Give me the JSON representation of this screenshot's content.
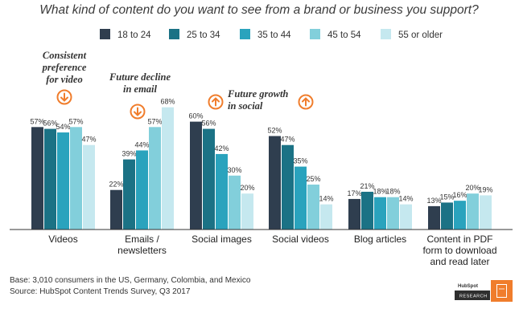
{
  "chart_data": {
    "type": "bar",
    "title": "What kind of content do you want to see from a brand or business you support?",
    "categories": [
      [
        "Videos"
      ],
      [
        "Emails /",
        "newsletters"
      ],
      [
        "Social images"
      ],
      [
        "Social videos"
      ],
      [
        "Blog articles"
      ],
      [
        "Content in PDF",
        "form to download",
        "and read later"
      ]
    ],
    "series": [
      {
        "name": "18 to 24",
        "color": "#2f3e4f",
        "values": [
          57,
          22,
          60,
          52,
          17,
          13
        ]
      },
      {
        "name": "25 to 34",
        "color": "#1b7285",
        "values": [
          56,
          39,
          56,
          47,
          21,
          15
        ]
      },
      {
        "name": "35 to 44",
        "color": "#2aa3bd",
        "values": [
          54,
          44,
          42,
          35,
          18,
          16
        ]
      },
      {
        "name": "45 to 54",
        "color": "#82cfdb",
        "values": [
          57,
          57,
          30,
          25,
          18,
          20
        ]
      },
      {
        "name": "55 or older",
        "color": "#c5e8ef",
        "values": [
          47,
          68,
          20,
          14,
          14,
          19
        ]
      }
    ],
    "value_suffix": "%",
    "ylim": [
      0,
      70
    ],
    "xlabel": "",
    "ylabel": "",
    "grid": false,
    "legend": "top-center",
    "annotations": [
      {
        "lines": [
          "Consistent",
          "preference",
          "for video"
        ],
        "category": "Videos",
        "icon": "down-arrow-circle-icon"
      },
      {
        "lines": [
          "Future decline",
          "in email"
        ],
        "category": "Emails / newsletters",
        "icon": "down-arrow-circle-icon"
      },
      {
        "lines": [
          "Future growth",
          "in social"
        ],
        "category": "Social images, Social videos",
        "icon": "up-arrow-circle-icon"
      }
    ]
  },
  "footer": {
    "base": "Base: 3,010 consumers in the US, Germany, Colombia, and Mexico",
    "source": "Source: HubSpot Content Trends Survey, Q3 2017"
  },
  "logo": {
    "brand": "HubSpot",
    "label": "RESEARCH"
  },
  "colors": {
    "accent_orange": "#f07d2c",
    "axis": "#333333"
  }
}
